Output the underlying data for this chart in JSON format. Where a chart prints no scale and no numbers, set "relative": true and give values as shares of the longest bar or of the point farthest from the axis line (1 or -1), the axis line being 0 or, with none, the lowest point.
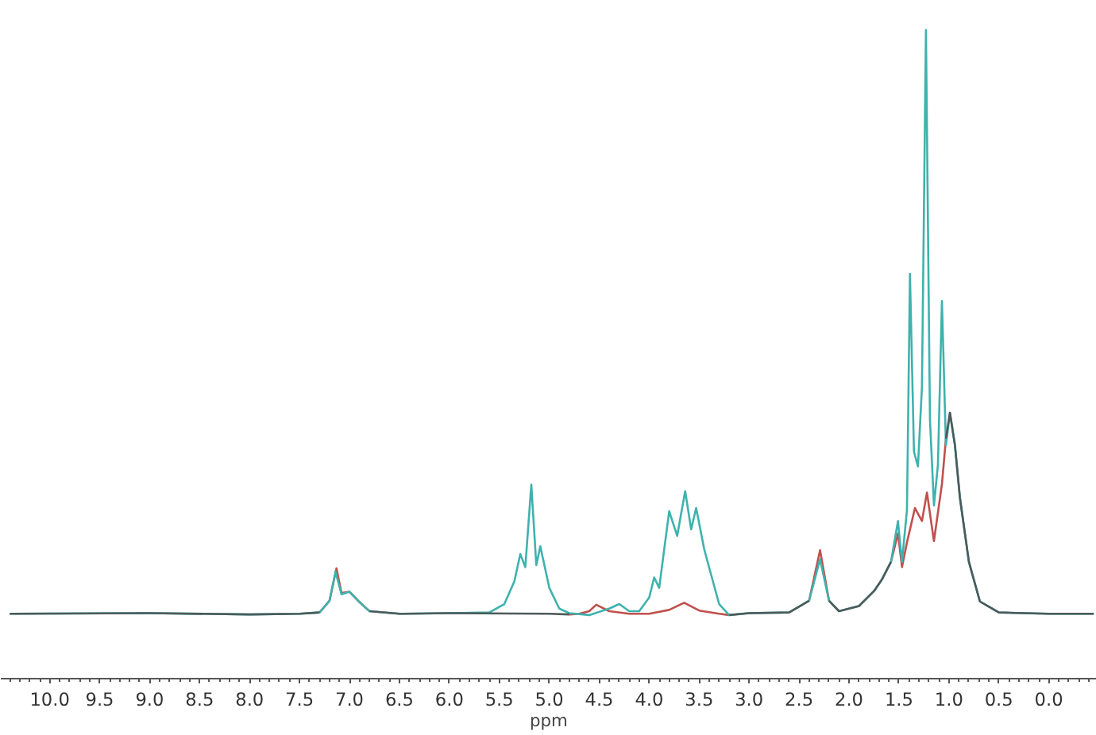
{
  "chart_data": {
    "type": "line",
    "relative": true,
    "xlabel": "ppm",
    "xlim": [
      10.49,
      -0.48
    ],
    "xticks": [
      {
        "value": 10,
        "label": "10.0"
      },
      {
        "value": 9.5,
        "label": "9.5"
      },
      {
        "value": 9,
        "label": "9.0"
      },
      {
        "value": 8.5,
        "label": "8.5"
      },
      {
        "value": 8,
        "label": "8.0"
      },
      {
        "value": 7.5,
        "label": "7.5"
      },
      {
        "value": 7,
        "label": "7.0"
      },
      {
        "value": 6.5,
        "label": "6.5"
      },
      {
        "value": 6,
        "label": "6.0"
      },
      {
        "value": 5.5,
        "label": "5.5"
      },
      {
        "value": 5,
        "label": "5.0"
      },
      {
        "value": 4.5,
        "label": "4.5"
      },
      {
        "value": 4,
        "label": "4.0"
      },
      {
        "value": 3.5,
        "label": "3.5"
      },
      {
        "value": 3,
        "label": "3.0"
      },
      {
        "value": 2.5,
        "label": "2.5"
      },
      {
        "value": 2,
        "label": "2.0"
      },
      {
        "value": 1.5,
        "label": "1.5"
      },
      {
        "value": 1,
        "label": "1.0"
      },
      {
        "value": 0.5,
        "label": "0.5"
      },
      {
        "value": 0,
        "label": "0.0"
      }
    ],
    "tick_labels": "x",
    "grid": false,
    "marker": "none",
    "line_style": "solid",
    "series": [
      {
        "color": "#c0504d",
        "x": [
          7.3,
          7.2,
          7.13,
          7.08,
          7.0,
          6.9,
          6.8,
          6.7,
          4.8,
          4.7,
          4.6,
          4.53,
          4.4,
          4.2,
          4.0,
          3.8,
          3.65,
          3.5,
          3.3,
          3.2,
          3.0,
          2.4,
          2.29,
          2.2,
          2.0,
          1.58,
          1.51,
          1.47,
          1.42,
          1.34,
          1.27,
          1.22,
          1.15,
          1.07,
          1.03
        ],
        "values": [
          0.102,
          0.12,
          0.17,
          0.132,
          0.134,
          0.118,
          0.104,
          null,
          0.099,
          0.1,
          0.104,
          0.114,
          0.104,
          0.1,
          0.1,
          0.106,
          0.117,
          0.105,
          0.1,
          0.098,
          null,
          0.12,
          0.198,
          0.12,
          null,
          0.18,
          0.224,
          0.172,
          0.21,
          0.263,
          0.243,
          0.287,
          0.212,
          0.3,
          0.37
        ]
      },
      {
        "color": "#3fb2ad",
        "x": [
          10.4,
          9.0,
          8.0,
          7.5,
          7.3,
          7.2,
          7.14,
          7.08,
          7.0,
          6.9,
          6.8,
          6.5,
          6.0,
          5.6,
          5.45,
          5.35,
          5.29,
          5.24,
          5.18,
          5.13,
          5.09,
          5.0,
          4.9,
          4.8,
          4.6,
          4.4,
          4.3,
          4.2,
          4.1,
          4.0,
          3.95,
          3.9,
          3.8,
          3.72,
          3.64,
          3.58,
          3.53,
          3.45,
          3.38,
          3.3,
          3.2,
          3.0,
          2.6,
          2.4,
          2.29,
          2.2,
          2.1,
          1.9,
          1.75,
          1.67,
          1.58,
          1.51,
          1.47,
          1.42,
          1.39,
          1.35,
          1.31,
          1.27,
          1.23,
          1.19,
          1.15,
          1.11,
          1.07,
          1.03,
          0.99,
          0.94,
          0.89,
          0.8,
          0.69,
          0.5,
          0.0,
          -0.45
        ],
        "values": [
          0.1,
          0.101,
          0.099,
          0.1,
          0.102,
          0.12,
          0.165,
          0.13,
          0.134,
          0.118,
          0.104,
          0.1,
          0.101,
          0.102,
          0.115,
          0.15,
          0.192,
          0.172,
          0.299,
          0.175,
          0.204,
          0.14,
          0.108,
          0.101,
          0.098,
          0.108,
          0.115,
          0.104,
          0.104,
          0.125,
          0.156,
          0.14,
          0.258,
          0.22,
          0.289,
          0.23,
          0.263,
          0.2,
          0.16,
          0.115,
          0.098,
          0.101,
          0.102,
          0.12,
          0.184,
          0.12,
          0.104,
          0.112,
          0.135,
          0.153,
          0.18,
          0.243,
          0.18,
          0.26,
          0.624,
          0.35,
          0.327,
          0.45,
          1.0,
          0.4,
          0.267,
          0.33,
          0.582,
          0.36,
          0.41,
          0.36,
          0.279,
          0.18,
          0.119,
          0.102,
          0.1,
          0.1
        ]
      },
      {
        "color": "#4d5a5a",
        "x": [
          10.4,
          9.0,
          8.0,
          7.5,
          7.3,
          7.25,
          6.8,
          6.5,
          6.0,
          5.0,
          4.8,
          4.75,
          3.2,
          3.0,
          2.6,
          2.4,
          2.35,
          2.2,
          2.1,
          1.9,
          1.75,
          1.67,
          1.58,
          1.55,
          1.03,
          0.99,
          0.94,
          0.89,
          0.8,
          0.69,
          0.5,
          0.0,
          -0.45
        ],
        "values": [
          0.1,
          0.101,
          0.099,
          0.1,
          0.102,
          null,
          0.104,
          0.1,
          0.101,
          0.1,
          0.099,
          null,
          0.098,
          0.101,
          0.102,
          0.12,
          null,
          0.12,
          0.104,
          0.112,
          0.135,
          0.153,
          0.18,
          null,
          0.37,
          0.41,
          0.36,
          0.279,
          0.18,
          0.119,
          0.102,
          0.1,
          0.1
        ]
      }
    ]
  }
}
